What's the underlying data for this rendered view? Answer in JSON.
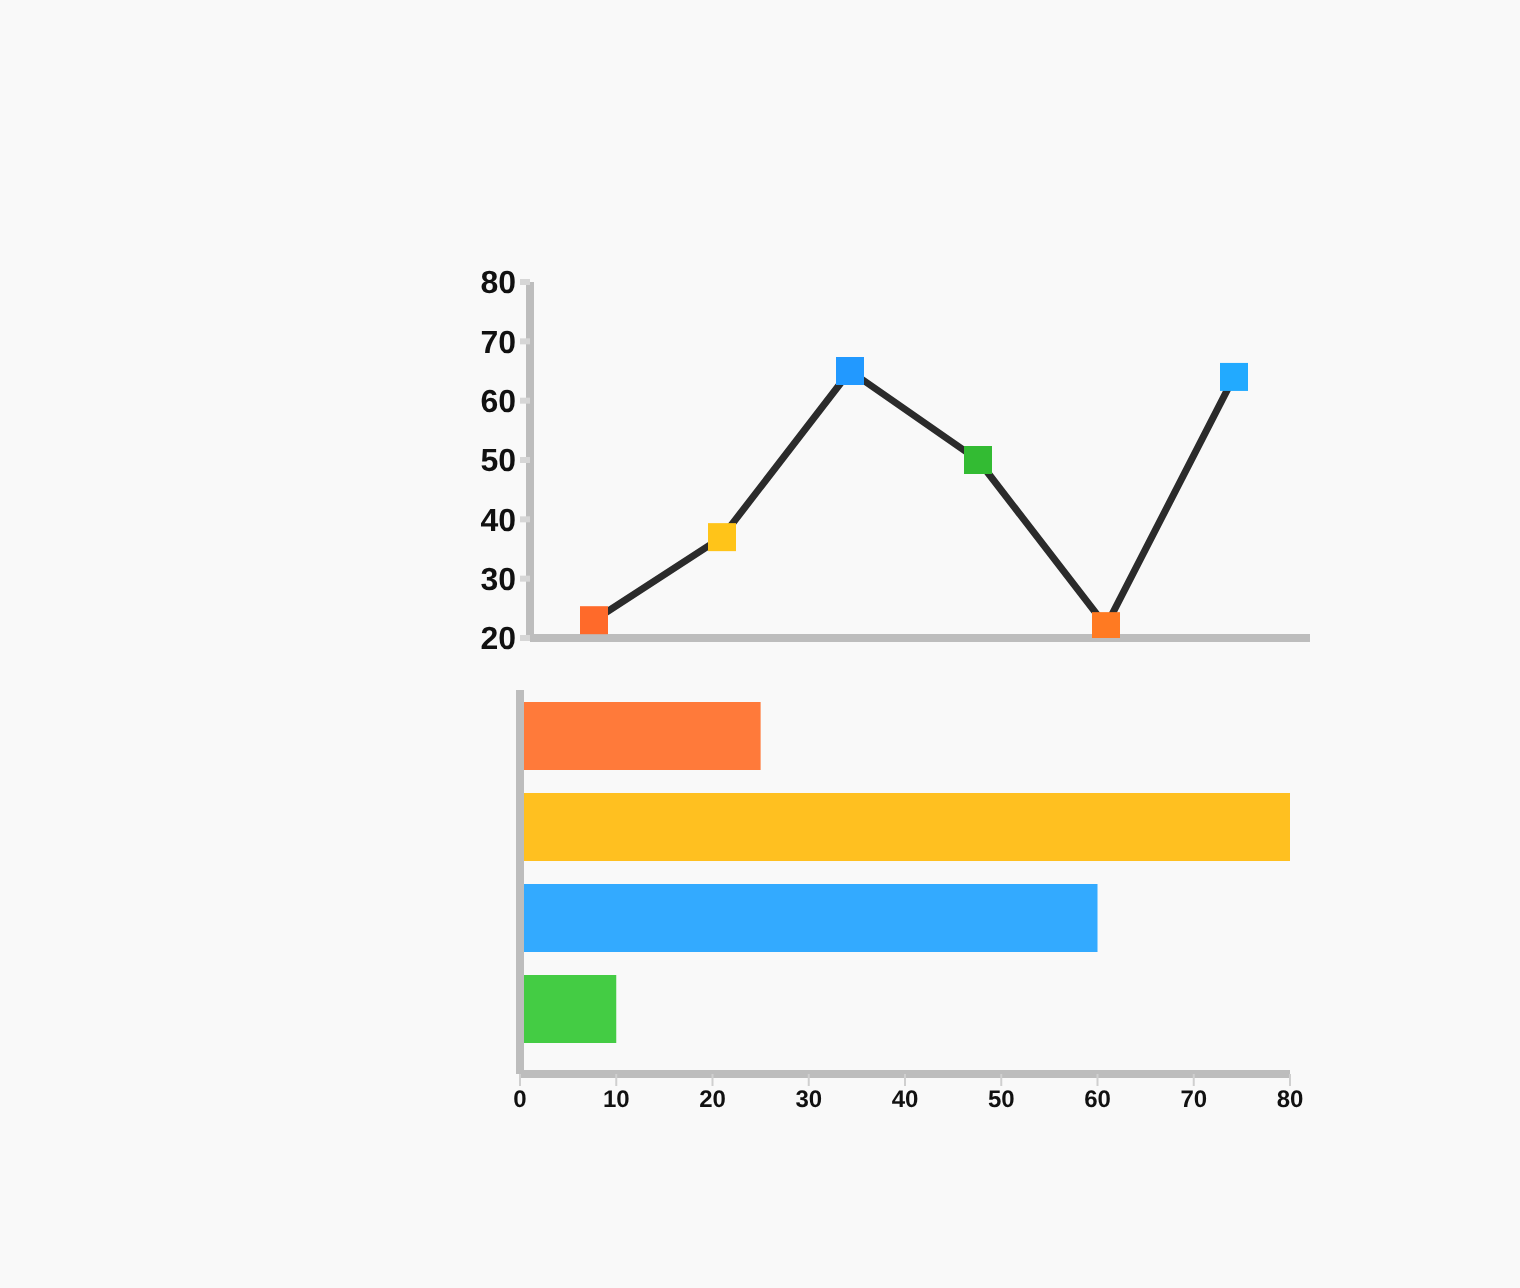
{
  "chart_data": [
    {
      "type": "line",
      "categories": [
        null,
        null,
        null,
        null,
        null,
        null
      ],
      "series": [
        {
          "color": "#2b2b2b",
          "colors": [
            "#ff6a2a",
            "#ffc419",
            "#2299ff",
            "#33bb33",
            "#ff7a22",
            "#22aaff"
          ],
          "values": [
            23,
            37,
            65,
            50,
            22,
            64
          ]
        }
      ],
      "ylim": [
        20,
        80
      ],
      "yticks": [
        20,
        30,
        40,
        50,
        60,
        70,
        80
      ],
      "marker": "square",
      "tick_labels": "y"
    },
    {
      "type": "bar",
      "orientation": "horizontal",
      "categories": [
        null,
        null,
        null,
        null
      ],
      "values": [
        25,
        80,
        60,
        10
      ],
      "colors": [
        "#ff7a3a",
        "#ffc020",
        "#33aaff",
        "#44cc44"
      ],
      "xlim": [
        0,
        80
      ],
      "xticks": [
        0,
        10,
        20,
        30,
        40,
        50,
        60,
        70,
        80
      ],
      "tick_labels": "x"
    }
  ]
}
